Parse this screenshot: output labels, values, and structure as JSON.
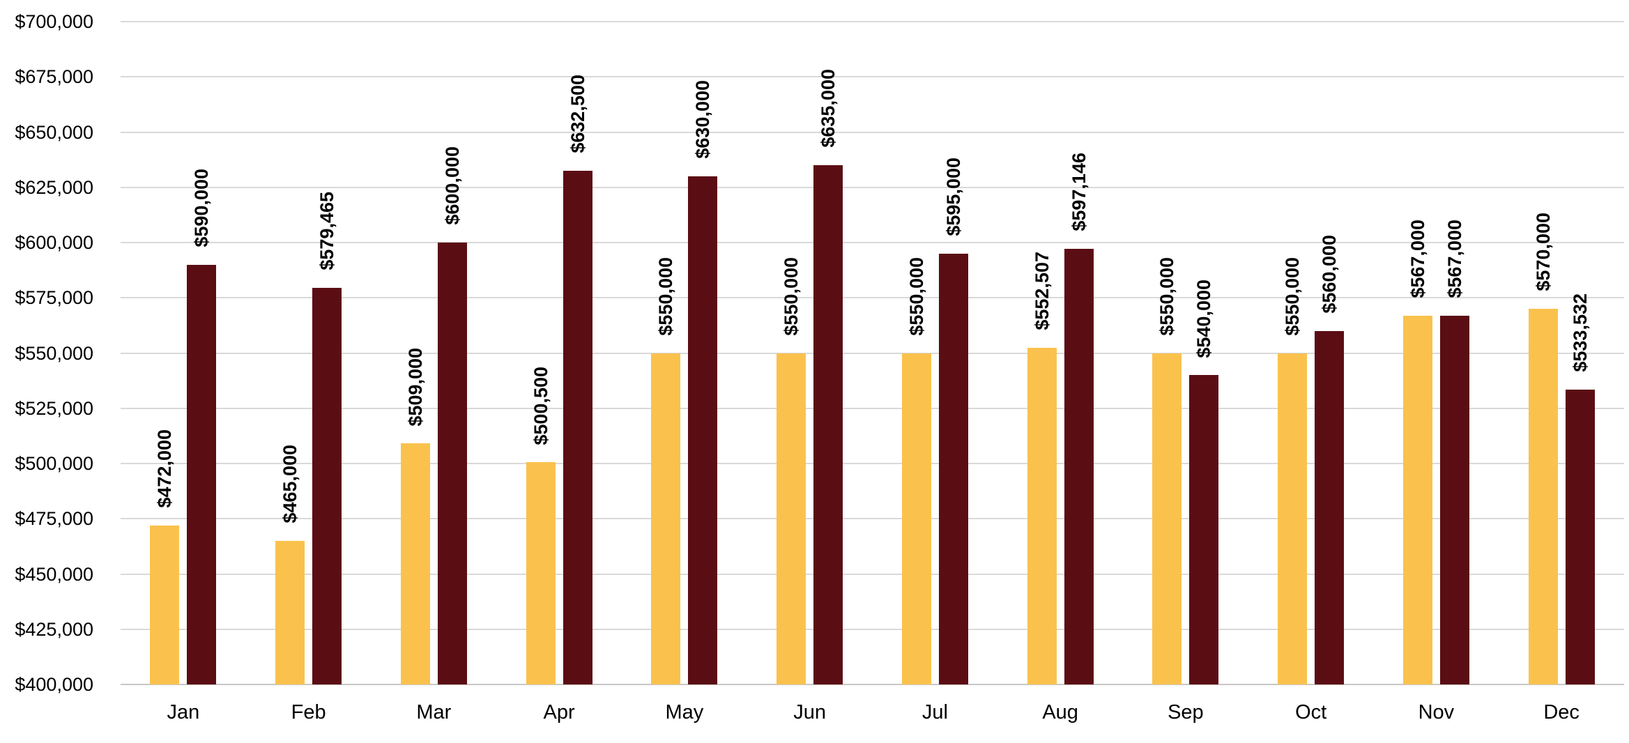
{
  "chart_data": {
    "type": "bar",
    "title": "",
    "categories": [
      "Jan",
      "Feb",
      "Mar",
      "Apr",
      "May",
      "Jun",
      "Jul",
      "Aug",
      "Sep",
      "Oct",
      "Nov",
      "Dec"
    ],
    "series": [
      {
        "id": "gold",
        "color": "#FAC24D",
        "values": [
          472000,
          465000,
          509000,
          500500,
          550000,
          550000,
          550000,
          552507,
          550000,
          550000,
          567000,
          570000
        ],
        "labels": [
          "$472,000",
          "$465,000",
          "$509,000",
          "$500,500",
          "$550,000",
          "$550,000",
          "$550,000",
          "$552,507",
          "$550,000",
          "$550,000",
          "$567,000",
          "$570,000"
        ]
      },
      {
        "id": "dark-maroon",
        "color": "#5B0D14",
        "values": [
          590000,
          579465,
          600000,
          632500,
          630000,
          635000,
          595000,
          597146,
          540000,
          560000,
          567000,
          533532
        ],
        "labels": [
          "$590,000",
          "$579,465",
          "$600,000",
          "$632,500",
          "$630,000",
          "$635,000",
          "$595,000",
          "$597,146",
          "$540,000",
          "$560,000",
          "$567,000",
          "$533,532"
        ]
      }
    ],
    "ylim": [
      400000,
      700000
    ],
    "ytick_step": 25000,
    "ytick_labels": [
      "$400,000",
      "$425,000",
      "$450,000",
      "$475,000",
      "$500,000",
      "$525,000",
      "$550,000",
      "$575,000",
      "$600,000",
      "$625,000",
      "$650,000",
      "$675,000",
      "$700,000"
    ],
    "grid": true,
    "legend": "none",
    "data_label_rotation_deg": 90,
    "data_label_position": "outside-end",
    "colors": {
      "gridline": "#D9D9D9",
      "axis_line": "#C9C7C7",
      "text": "#000000"
    }
  }
}
